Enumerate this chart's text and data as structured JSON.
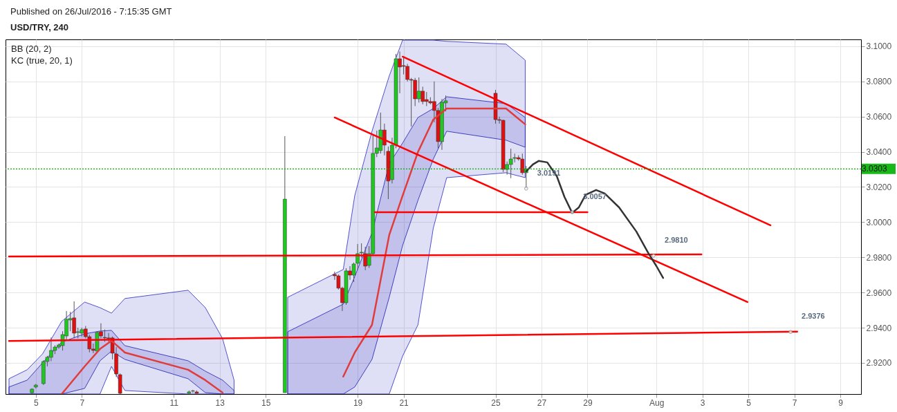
{
  "chart_data": {
    "type": "candlestick",
    "title": "USD/TRY, 240",
    "subtitle": "Published on 26/Jul/2016 - 7:15:35 GMT",
    "annotations": [
      "BB (20, 2)",
      "KC (true, 20, 1)",
      {
        "text": "3.0191",
        "x": "2016-07-26T08:00",
        "y": 3.0191
      },
      {
        "text": "3.0057",
        "x": "2016-07-28T08:00",
        "y": 3.0057
      },
      {
        "text": "2.9810",
        "x": "2016-07-31T21:00",
        "y": 2.981
      },
      {
        "text": "2.9376",
        "x": "2016-08-06T20:00",
        "y": 2.9376
      }
    ],
    "x": [
      "2016-07-04T20:00",
      "2016-07-05T00:00",
      "2016-07-05T08:00",
      "2016-07-05T12:00",
      "2016-07-05T16:00",
      "2016-07-05T20:00",
      "2016-07-06T00:00",
      "2016-07-06T04:00",
      "2016-07-06T08:00",
      "2016-07-06T12:00",
      "2016-07-06T16:00",
      "2016-07-06T20:00",
      "2016-07-07T00:00",
      "2016-07-07T04:00",
      "2016-07-07T08:00",
      "2016-07-07T12:00",
      "2016-07-07T16:00",
      "2016-07-07T20:00",
      "2016-07-08T00:00",
      "2016-07-08T04:00",
      "2016-07-08T08:00",
      "2016-07-08T12:00",
      "2016-07-08T16:00",
      "2016-07-11T16:00",
      "2016-07-11T20:00",
      "2016-07-12T00:00",
      "2016-07-15T20:00",
      "2016-07-18T00:00",
      "2016-07-18T04:00",
      "2016-07-18T08:00",
      "2016-07-18T12:00",
      "2016-07-18T16:00",
      "2016-07-18T20:00",
      "2016-07-19T00:00",
      "2016-07-19T04:00",
      "2016-07-19T08:00",
      "2016-07-19T12:00",
      "2016-07-19T16:00",
      "2016-07-19T20:00",
      "2016-07-20T00:00",
      "2016-07-20T04:00",
      "2016-07-20T08:00",
      "2016-07-20T12:00",
      "2016-07-20T16:00",
      "2016-07-20T20:00",
      "2016-07-21T00:00",
      "2016-07-21T04:00",
      "2016-07-21T08:00",
      "2016-07-21T12:00",
      "2016-07-21T16:00",
      "2016-07-21T20:00",
      "2016-07-22T00:00",
      "2016-07-22T04:00",
      "2016-07-22T08:00",
      "2016-07-22T12:00",
      "2016-07-22T16:00",
      "2016-07-22T20:00",
      "2016-07-25T00:00",
      "2016-07-25T04:00",
      "2016-07-25T08:00",
      "2016-07-25T12:00",
      "2016-07-25T16:00",
      "2016-07-25T20:00",
      "2016-07-26T00:00",
      "2016-07-26T04:00",
      "2016-07-26T08:00"
    ],
    "ohlc": [
      [
        2.903,
        2.9055,
        2.9025,
        2.9051
      ],
      [
        2.9063,
        2.908,
        2.9055,
        2.9074
      ],
      [
        2.9082,
        2.9215,
        2.9075,
        2.9208
      ],
      [
        2.9208,
        2.924,
        2.918,
        2.9232
      ],
      [
        2.9232,
        2.9345,
        2.921,
        2.9271
      ],
      [
        2.9271,
        2.93,
        2.925,
        2.929
      ],
      [
        2.929,
        2.931,
        2.928,
        2.9302
      ],
      [
        2.9298,
        2.938,
        2.927,
        2.9361
      ],
      [
        2.9353,
        2.9495,
        2.933,
        2.9448
      ],
      [
        2.9444,
        2.949,
        2.938,
        2.9452
      ],
      [
        2.9456,
        2.955,
        2.934,
        2.9369
      ],
      [
        2.9373,
        2.94,
        2.934,
        2.9377
      ],
      [
        2.9369,
        2.94,
        2.935,
        2.9389
      ],
      [
        2.9393,
        2.941,
        2.934,
        2.9349
      ],
      [
        2.9349,
        2.936,
        2.926,
        2.9279
      ],
      [
        2.9279,
        2.931,
        2.9255,
        2.9271
      ],
      [
        2.9267,
        2.938,
        2.9255,
        2.9373
      ],
      [
        2.9377,
        2.9425,
        2.934,
        2.9353
      ],
      [
        2.9345,
        2.939,
        2.932,
        2.9342
      ],
      [
        2.9342,
        2.937,
        2.932,
        2.9338
      ],
      [
        2.9342,
        2.935,
        2.922,
        2.9255
      ],
      [
        2.9251,
        2.929,
        2.912,
        2.9137
      ],
      [
        2.9133,
        2.914,
        2.9023,
        2.9027
      ],
      [
        2.9027,
        2.9043,
        2.9025,
        2.9035
      ],
      [
        2.904,
        2.9047,
        2.903,
        2.9041
      ],
      [
        2.9035,
        2.9043,
        2.9025,
        2.9027
      ],
      [
        2.9031,
        3.0489,
        2.9031,
        3.0131
      ],
      [
        2.9703,
        2.9719,
        2.9672,
        2.9695
      ],
      [
        2.9695,
        2.9703,
        2.9617,
        2.9625
      ],
      [
        2.9625,
        2.9633,
        2.9495,
        2.9542
      ],
      [
        2.9542,
        2.9738,
        2.953,
        2.9723
      ],
      [
        2.9723,
        2.975,
        2.9672,
        2.9699
      ],
      [
        2.9699,
        2.977,
        2.966,
        2.9762
      ],
      [
        2.9766,
        2.9876,
        2.973,
        2.9821
      ],
      [
        2.9825,
        2.988,
        2.98,
        2.9829
      ],
      [
        2.9821,
        2.986,
        2.9727,
        2.975
      ],
      [
        2.9754,
        2.9864,
        2.974,
        2.9821
      ],
      [
        2.9821,
        3.05,
        2.981,
        3.0391
      ],
      [
        3.0391,
        3.052,
        3.037,
        3.0422
      ],
      [
        3.0407,
        3.0623,
        3.039,
        3.0524
      ],
      [
        3.0524,
        3.056,
        3.038,
        3.0438
      ],
      [
        3.0403,
        3.043,
        3.0131,
        3.0234
      ],
      [
        3.0242,
        3.048,
        3.022,
        3.0438
      ],
      [
        3.0438,
        3.0956,
        3.042,
        3.0929
      ],
      [
        3.0929,
        3.097,
        3.0733,
        3.0882
      ],
      [
        3.089,
        3.094,
        3.084,
        3.0886
      ],
      [
        3.0886,
        3.09,
        3.08,
        3.0811
      ],
      [
        3.0811,
        3.082,
        3.0544,
        3.0807
      ],
      [
        3.0807,
        3.082,
        3.066,
        3.0701
      ],
      [
        3.0701,
        3.0823,
        3.068,
        3.0745
      ],
      [
        3.0745,
        3.077,
        3.067,
        3.0686
      ],
      [
        3.0697,
        3.074,
        3.066,
        3.0686
      ],
      [
        3.0686,
        3.071,
        3.067,
        3.0678
      ],
      [
        3.0686,
        3.08,
        3.0568,
        3.0635
      ],
      [
        3.0635,
        3.065,
        3.042,
        3.0458
      ],
      [
        3.0458,
        3.07,
        3.0411,
        3.0682
      ],
      [
        3.0678,
        3.072,
        3.063,
        3.069
      ],
      [
        3.0733,
        3.0752,
        3.056,
        3.0583
      ],
      [
        3.0583,
        3.06,
        3.056,
        3.0579
      ],
      [
        3.0579,
        3.0583,
        3.0285,
        3.03
      ],
      [
        3.03,
        3.0345,
        3.027,
        3.0328
      ],
      [
        3.0328,
        3.0418,
        3.025,
        3.0359
      ],
      [
        3.0363,
        3.039,
        3.034,
        3.0367
      ],
      [
        3.0367,
        3.038,
        3.035,
        3.0359
      ],
      [
        3.0359,
        3.039,
        3.027,
        3.0281
      ],
      [
        3.0281,
        3.032,
        3.0191,
        3.0303
      ]
    ],
    "series": [
      {
        "type": "line",
        "color": "#4040c8",
        "x": [
          "2016-07-03T20:00",
          "2016-07-04T15:00",
          "2016-07-05T07:00",
          "2016-07-06T03:00",
          "2016-07-07T03:00",
          "2016-07-07T19:00",
          "2016-07-08T07:00",
          "2016-07-08T21:00",
          "2016-07-11T15:00",
          "2016-07-12T09:00",
          "2016-07-13T03:00",
          "2016-07-13T15:00"
        ],
        "values": [
          null,
          null,
          null,
          null,
          null,
          null,
          null,
          null,
          null,
          null,
          null,
          null
        ],
        "upper": [
          2.911,
          2.9161,
          2.9251,
          2.9436,
          2.9546,
          2.9514,
          2.9483,
          2.9566,
          2.9613,
          2.9514,
          2.9338,
          2.9102
        ],
        "lower": [
          2.9023,
          2.9023,
          2.9023,
          2.9023,
          2.9023,
          2.9023,
          2.918,
          2.9043,
          2.9023,
          2.9023,
          2.9023,
          2.9023
        ]
      },
      {
        "type": "line",
        "color": "#4040c8",
        "x": [
          "2016-07-15T23:00",
          "2016-07-18T09:00",
          "2016-07-18T21:00",
          "2016-07-19T15:00",
          "2016-07-20T09:00",
          "2016-07-20T23:00",
          "2016-07-21T15:00",
          "2016-07-22T07:00",
          "2016-07-22T21:00",
          "2016-07-25T11:00",
          "2016-07-26T07:00"
        ],
        "values": [
          null,
          null,
          null,
          null,
          null,
          null,
          null,
          null,
          null,
          null,
          null
        ],
        "upper": [
          2.9573,
          2.9731,
          3.0151,
          3.0517,
          3.0831,
          3.1035,
          3.1035,
          3.1035,
          3.1028,
          3.1012,
          3.0921
        ],
        "lower": [
          2.9023,
          2.9023,
          2.9023,
          2.9023,
          2.9023,
          2.9239,
          2.9416,
          2.9966,
          3.0253,
          3.0281,
          3.0253
        ]
      },
      {
        "type": "line",
        "color": "#3030b8",
        "x": [
          "2016-07-03T20:00",
          "2016-07-04T15:00",
          "2016-07-05T07:00",
          "2016-07-06T03:00",
          "2016-07-07T03:00",
          "2016-07-07T19:00",
          "2016-07-08T07:00",
          "2016-07-08T21:00",
          "2016-07-11T15:00",
          "2016-07-12T09:00",
          "2016-07-13T03:00",
          "2016-07-13T15:00"
        ],
        "values": [
          null,
          null,
          null,
          null,
          null,
          null,
          null,
          null,
          null,
          null,
          null,
          null
        ],
        "upper": [
          2.9063,
          2.9102,
          2.92,
          2.9318,
          2.9365,
          2.9381,
          2.9385,
          2.9298,
          2.9212,
          2.9153,
          2.9102,
          2.9043
        ],
        "lower": [
          2.9023,
          2.9023,
          2.9023,
          2.9023,
          2.9055,
          2.9212,
          2.9267,
          2.922,
          2.911,
          2.9031,
          2.9023,
          2.9023
        ]
      },
      {
        "type": "line",
        "color": "#3030b8",
        "x": [
          "2016-07-15T23:00",
          "2016-07-18T09:00",
          "2016-07-18T21:00",
          "2016-07-19T15:00",
          "2016-07-20T09:00",
          "2016-07-20T23:00",
          "2016-07-21T15:00",
          "2016-07-22T07:00",
          "2016-07-22T21:00",
          "2016-07-25T11:00",
          "2016-07-26T07:00"
        ],
        "values": [
          null,
          null,
          null,
          null,
          null,
          null,
          null,
          null,
          null,
          null,
          null
        ],
        "upper": [
          2.9377,
          2.9534,
          2.9691,
          2.9939,
          3.0332,
          3.045,
          3.0595,
          3.0646,
          3.0713,
          3.0674,
          3.0595
        ],
        "lower": [
          2.9023,
          2.9023,
          2.9063,
          2.922,
          2.9573,
          2.9868,
          3.0124,
          3.0359,
          3.0517,
          3.0466,
          3.0426
        ]
      },
      {
        "type": "line",
        "color": "#e03c3c",
        "x": [
          "2016-07-06T03:00",
          "2016-07-07T03:00",
          "2016-07-07T19:00",
          "2016-07-08T07:00",
          "2016-07-08T21:00",
          "2016-07-11T15:00",
          "2016-07-12T09:00",
          "2016-07-13T03:00",
          "2016-07-14T19:00",
          "2016-07-18T09:00",
          "2016-07-18T21:00",
          "2016-07-19T15:00",
          "2016-07-20T09:00",
          "2016-07-20T23:00",
          "2016-07-21T15:00",
          "2016-07-22T07:00",
          "2016-07-22T21:00",
          "2016-07-25T11:00",
          "2016-07-26T07:00"
        ],
        "values": [
          2.9023,
          2.918,
          2.9279,
          2.9326,
          2.9259,
          2.9161,
          2.9102,
          2.9031,
          null,
          2.9122,
          2.9259,
          2.9416,
          2.9927,
          3.0151,
          3.0399,
          3.0583,
          3.0646,
          3.0646,
          3.0556
        ]
      },
      {
        "type": "line",
        "color": "#ff0000",
        "x": [
          "2016-07-20T23:00",
          "2016-08-05T23:00"
        ],
        "values": [
          3.0941,
          2.9982
        ]
      },
      {
        "type": "line",
        "color": "#ff0000",
        "x": [
          "2016-07-18T00:00",
          "2016-08-04T23:00"
        ],
        "values": [
          3.0595,
          2.9546
        ]
      },
      {
        "type": "line",
        "color": "#ff0000",
        "x": [
          "2016-07-19T18:00",
          "2016-07-29T00:00"
        ],
        "values": [
          3.0057,
          3.0057
        ]
      },
      {
        "type": "line",
        "color": "#ff0000",
        "x": [
          "2016-07-03T20:00",
          "2016-08-02T23:00"
        ],
        "values": [
          2.9805,
          2.9817
        ]
      },
      {
        "type": "line",
        "color": "#ff0000",
        "x": [
          "2016-07-03T20:00",
          "2016-08-07T03:00"
        ],
        "values": [
          2.9325,
          2.9378
        ]
      },
      {
        "type": "line",
        "color": "#333333",
        "x": [
          "2016-07-26T08:00",
          "2016-07-26T15:00",
          "2016-07-26T21:00",
          "2016-07-27T06:00",
          "2016-07-27T16:00",
          "2016-07-28T00:00",
          "2016-07-28T08:00",
          "2016-07-28T15:00",
          "2016-07-28T22:00",
          "2016-07-29T09:00",
          "2016-07-29T18:00",
          "2016-07-30T09:00",
          "2016-07-31T03:00",
          "2016-07-31T15:00",
          "2016-08-01T00:00",
          "2016-08-01T07:00"
        ],
        "values": [
          3.0289,
          3.0328,
          3.0348,
          3.034,
          3.0261,
          3.0143,
          3.0053,
          3.0084,
          3.0155,
          3.0183,
          3.0163,
          3.0084,
          2.9947,
          2.9829,
          2.975,
          2.9683
        ]
      }
    ],
    "ref_lines": [
      {
        "axis": "y",
        "value": 3.0303,
        "label": "3.0303",
        "color": "#00b000",
        "line_style": "dotted"
      }
    ],
    "xlim": [
      "2016-07-03T20:00",
      "2016-08-09T18:00"
    ],
    "ylim": [
      2.9023,
      3.1039
    ],
    "xticks": [
      {
        "value": "2016-07-05",
        "label": "5"
      },
      {
        "value": "2016-07-07",
        "label": "7"
      },
      {
        "value": "2016-07-11",
        "label": "11"
      },
      {
        "value": "2016-07-13",
        "label": "13"
      },
      {
        "value": "2016-07-15",
        "label": "15"
      },
      {
        "value": "2016-07-19",
        "label": "19"
      },
      {
        "value": "2016-07-21",
        "label": "21"
      },
      {
        "value": "2016-07-25",
        "label": "25"
      },
      {
        "value": "2016-07-27",
        "label": "27"
      },
      {
        "value": "2016-07-29",
        "label": "29"
      },
      {
        "value": "2016-08-01",
        "label": "Aug"
      },
      {
        "value": "2016-08-03",
        "label": "3"
      },
      {
        "value": "2016-08-05",
        "label": "5"
      },
      {
        "value": "2016-08-07",
        "label": "7"
      },
      {
        "value": "2016-08-09",
        "label": "9"
      }
    ],
    "yticks": [
      {
        "value": 2.92,
        "label": "2.9200"
      },
      {
        "value": 2.94,
        "label": "2.9400"
      },
      {
        "value": 2.96,
        "label": "2.9600"
      },
      {
        "value": 2.98,
        "label": "2.9800"
      },
      {
        "value": 3.0,
        "label": "3.0000"
      },
      {
        "value": 3.02,
        "label": "3.0200"
      },
      {
        "value": 3.04,
        "label": "3.0400"
      },
      {
        "value": 3.06,
        "label": "3.0600"
      },
      {
        "value": 3.08,
        "label": "3.0800"
      },
      {
        "value": 3.1,
        "label": "3.1000"
      }
    ],
    "grid": true
  }
}
